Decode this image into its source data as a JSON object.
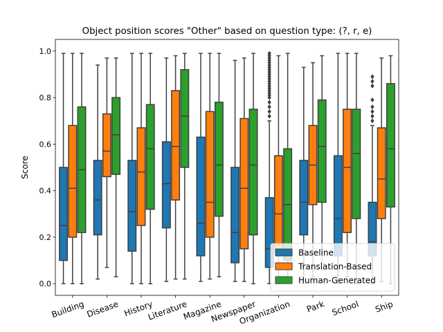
{
  "chart_data": {
    "type": "box",
    "title": "Object position scores \"Other\" based on question type: (?, r, e)",
    "xlabel": "",
    "ylabel": "Score",
    "ylim": [
      -0.05,
      1.05
    ],
    "yticks": [
      0.0,
      0.2,
      0.4,
      0.6,
      0.8,
      1.0
    ],
    "ytick_labels": [
      "0.0",
      "0.2",
      "0.4",
      "0.6",
      "0.8",
      "1.0"
    ],
    "grid": false,
    "legend_position": "lower-right",
    "categories": [
      "Building",
      "Disease",
      "History",
      "Literature",
      "Magazine",
      "Newspaper",
      "Organization",
      "Park",
      "School",
      "Ship"
    ],
    "series": [
      {
        "name": "Baseline",
        "color": "#1f77b4",
        "stats": [
          {
            "whislo": 0.0,
            "q1": 0.1,
            "med": 0.25,
            "q3": 0.5,
            "whishi": 0.99,
            "fliers": []
          },
          {
            "whislo": 0.02,
            "q1": 0.21,
            "med": 0.36,
            "q3": 0.53,
            "whishi": 0.94,
            "fliers": []
          },
          {
            "whislo": 0.0,
            "q1": 0.14,
            "med": 0.31,
            "q3": 0.53,
            "whishi": 0.99,
            "fliers": []
          },
          {
            "whislo": 0.01,
            "q1": 0.24,
            "med": 0.43,
            "q3": 0.61,
            "whishi": 0.97,
            "fliers": []
          },
          {
            "whislo": 0.01,
            "q1": 0.12,
            "med": 0.26,
            "q3": 0.63,
            "whishi": 0.99,
            "fliers": []
          },
          {
            "whislo": 0.01,
            "q1": 0.09,
            "med": 0.22,
            "q3": 0.5,
            "whishi": 0.96,
            "fliers": []
          },
          {
            "whislo": 0.0,
            "q1": 0.07,
            "med": 0.15,
            "q3": 0.37,
            "whishi": 0.7,
            "fliers": [
              0.72,
              0.74,
              0.76,
              0.78,
              0.8,
              0.81,
              0.82,
              0.83,
              0.84,
              0.85,
              0.86,
              0.87,
              0.88,
              0.89,
              0.9,
              0.91,
              0.92,
              0.93,
              0.94,
              0.95,
              0.96,
              0.97,
              0.98,
              0.99
            ]
          },
          {
            "whislo": 0.0,
            "q1": 0.21,
            "med": 0.35,
            "q3": 0.53,
            "whishi": 0.93,
            "fliers": []
          },
          {
            "whislo": 0.0,
            "q1": 0.12,
            "med": 0.28,
            "q3": 0.55,
            "whishi": 0.99,
            "fliers": []
          },
          {
            "whislo": 0.0,
            "q1": 0.12,
            "med": 0.18,
            "q3": 0.35,
            "whishi": 0.68,
            "fliers": [
              0.7,
              0.72,
              0.74,
              0.76,
              0.79,
              0.85,
              0.87,
              0.89
            ]
          }
        ]
      },
      {
        "name": "Translation-Based",
        "color": "#ff7f0e",
        "stats": [
          {
            "whislo": 0.0,
            "q1": 0.2,
            "med": 0.41,
            "q3": 0.68,
            "whishi": 0.99,
            "fliers": []
          },
          {
            "whislo": 0.07,
            "q1": 0.46,
            "med": 0.57,
            "q3": 0.73,
            "whishi": 0.97,
            "fliers": []
          },
          {
            "whislo": 0.0,
            "q1": 0.25,
            "med": 0.48,
            "q3": 0.67,
            "whishi": 0.99,
            "fliers": []
          },
          {
            "whislo": 0.02,
            "q1": 0.36,
            "med": 0.59,
            "q3": 0.83,
            "whishi": 0.98,
            "fliers": []
          },
          {
            "whislo": 0.02,
            "q1": 0.2,
            "med": 0.35,
            "q3": 0.74,
            "whishi": 0.99,
            "fliers": []
          },
          {
            "whislo": 0.01,
            "q1": 0.15,
            "med": 0.41,
            "q3": 0.71,
            "whishi": 0.97,
            "fliers": []
          },
          {
            "whislo": 0.0,
            "q1": 0.15,
            "med": 0.3,
            "q3": 0.55,
            "whishi": 0.98,
            "fliers": []
          },
          {
            "whislo": 0.03,
            "q1": 0.34,
            "med": 0.51,
            "q3": 0.68,
            "whishi": 0.95,
            "fliers": []
          },
          {
            "whislo": 0.03,
            "q1": 0.22,
            "med": 0.5,
            "q3": 0.75,
            "whishi": 0.99,
            "fliers": []
          },
          {
            "whislo": 0.01,
            "q1": 0.28,
            "med": 0.45,
            "q3": 0.67,
            "whishi": 0.97,
            "fliers": []
          }
        ]
      },
      {
        "name": "Human-Generated",
        "color": "#2ca02c",
        "stats": [
          {
            "whislo": 0.0,
            "q1": 0.22,
            "med": 0.49,
            "q3": 0.76,
            "whishi": 0.99,
            "fliers": []
          },
          {
            "whislo": 0.03,
            "q1": 0.47,
            "med": 0.64,
            "q3": 0.8,
            "whishi": 0.97,
            "fliers": []
          },
          {
            "whislo": 0.0,
            "q1": 0.32,
            "med": 0.58,
            "q3": 0.77,
            "whishi": 0.99,
            "fliers": []
          },
          {
            "whislo": 0.02,
            "q1": 0.5,
            "med": 0.72,
            "q3": 0.92,
            "whishi": 0.99,
            "fliers": []
          },
          {
            "whislo": 0.03,
            "q1": 0.29,
            "med": 0.51,
            "q3": 0.78,
            "whishi": 0.99,
            "fliers": []
          },
          {
            "whislo": 0.0,
            "q1": 0.21,
            "med": 0.51,
            "q3": 0.75,
            "whishi": 0.99,
            "fliers": []
          },
          {
            "whislo": 0.0,
            "q1": 0.1,
            "med": 0.34,
            "q3": 0.58,
            "whishi": 0.99,
            "fliers": []
          },
          {
            "whislo": 0.09,
            "q1": 0.35,
            "med": 0.59,
            "q3": 0.79,
            "whishi": 0.98,
            "fliers": []
          },
          {
            "whislo": 0.0,
            "q1": 0.28,
            "med": 0.56,
            "q3": 0.75,
            "whishi": 0.99,
            "fliers": []
          },
          {
            "whislo": 0.0,
            "q1": 0.33,
            "med": 0.58,
            "q3": 0.86,
            "whishi": 0.98,
            "fliers": []
          }
        ]
      }
    ]
  }
}
